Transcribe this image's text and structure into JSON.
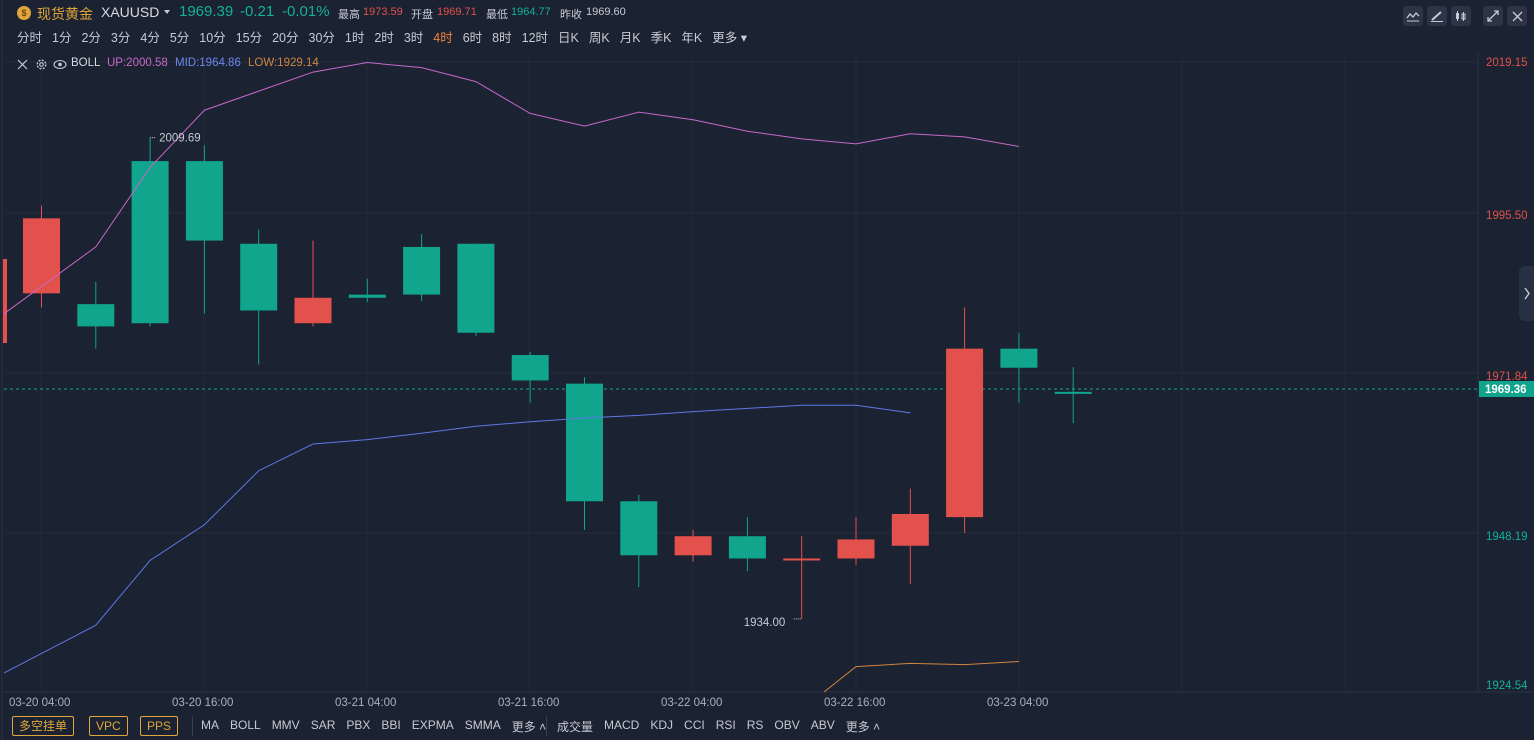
{
  "header": {
    "instrument_name": "现货黄金",
    "symbol": "XAUUSD",
    "coin_icon": "gold-coin-icon",
    "last_price": "1969.39",
    "change": "-0.21",
    "change_pct": "-0.01%",
    "high_label": "最高",
    "high": "1973.59",
    "open_label": "开盘",
    "open": "1969.71",
    "low_label": "最低",
    "low": "1964.77",
    "prev_close_label": "昨收",
    "prev_close": "1969.60",
    "toolbar_icons": [
      "line-chart-icon",
      "draw-pen-icon",
      "candle-type-icon",
      "fullscreen-icon"
    ]
  },
  "periods": [
    "分时",
    "1分",
    "2分",
    "3分",
    "4分",
    "5分",
    "10分",
    "15分",
    "20分",
    "30分",
    "1时",
    "2时",
    "3时",
    "4时",
    "6时",
    "8时",
    "12时",
    "日K",
    "周K",
    "月K",
    "季K",
    "年K",
    "更多"
  ],
  "active_period": "4时",
  "indicator": {
    "name": "BOLL",
    "up_text": "UP:2000.58",
    "mid_text": "MID:1964.86",
    "low_text": "LOW:1929.14",
    "up_color": "#c868c8",
    "mid_color": "#5f78e8",
    "low_color": "#d0853f"
  },
  "annotations": {
    "high_marker": "2009.69",
    "low_marker": "1934.00"
  },
  "price_axis": {
    "labels": [
      "2019.15",
      "1995.50",
      "1971.84",
      "1948.19",
      "1924.54"
    ],
    "current_price_tag": "1969.36"
  },
  "time_axis": [
    "03-20 04:00",
    "03-20 16:00",
    "03-21 04:00",
    "03-21 16:00",
    "03-22 04:00",
    "03-22 16:00",
    "03-23 04:00"
  ],
  "bottom": {
    "buttons": [
      "多空挂单",
      "VPC",
      "PPS"
    ],
    "main_indicators": [
      "MA",
      "BOLL",
      "MMV",
      "SAR",
      "PBX",
      "BBI",
      "EXPMA",
      "SMMA",
      "更多"
    ],
    "sub_indicators": [
      "成交量",
      "MACD",
      "KDJ",
      "CCI",
      "RSI",
      "RS",
      "OBV",
      "ABV",
      "更多"
    ]
  },
  "colors": {
    "up": "#e2514c",
    "down": "#10a58c",
    "accent": "#f0833a",
    "background": "#1b2231"
  },
  "chart_data": {
    "type": "candlestick",
    "price_range": [
      1922.5,
      2023.0
    ],
    "candles": [
      {
        "o": 1985.2,
        "c": 1997.0,
        "h": 1999.0,
        "l": 1983.0
      },
      {
        "o": 1983.5,
        "c": 1980.0,
        "h": 1987.0,
        "l": 1976.5
      },
      {
        "o": 2006.0,
        "c": 1980.5,
        "h": 2009.69,
        "l": 1980.0
      },
      {
        "o": 2006.0,
        "c": 1993.5,
        "h": 2008.5,
        "l": 1982.0
      },
      {
        "o": 1993.0,
        "c": 1982.5,
        "h": 1995.2,
        "l": 1974.0
      },
      {
        "o": 1980.5,
        "c": 1984.5,
        "h": 1993.5,
        "l": 1980.0
      },
      {
        "o": 1985.0,
        "c": 1984.5,
        "h": 1987.5,
        "l": 1983.8
      },
      {
        "o": 1992.5,
        "c": 1985.0,
        "h": 1994.5,
        "l": 1984.0
      },
      {
        "o": 1993.0,
        "c": 1979.0,
        "h": 1993.0,
        "l": 1978.5
      },
      {
        "o": 1975.5,
        "c": 1971.5,
        "h": 1976.0,
        "l": 1968.0
      },
      {
        "o": 1971.0,
        "c": 1952.5,
        "h": 1972.0,
        "l": 1948.0
      },
      {
        "o": 1952.5,
        "c": 1944.0,
        "h": 1953.5,
        "l": 1939.0
      },
      {
        "o": 1944.0,
        "c": 1947.0,
        "h": 1948.0,
        "l": 1943.0
      },
      {
        "o": 1947.0,
        "c": 1943.5,
        "h": 1950.0,
        "l": 1941.5
      },
      {
        "o": 1943.3,
        "c": 1943.5,
        "h": 1947.0,
        "l": 1934.0
      },
      {
        "o": 1943.5,
        "c": 1946.5,
        "h": 1950.0,
        "l": 1942.5
      },
      {
        "o": 1945.5,
        "c": 1950.5,
        "h": 1954.5,
        "l": 1939.5
      },
      {
        "o": 1950.0,
        "c": 1976.5,
        "h": 1983.0,
        "l": 1947.5
      },
      {
        "o": 1976.5,
        "c": 1973.5,
        "h": 1979.0,
        "l": 1968.0
      },
      {
        "o": 1969.71,
        "c": 1969.39,
        "h": 1973.59,
        "l": 1964.77
      }
    ],
    "boll_up": [
      1982.0,
      1992.5,
      2005.0,
      2014.0,
      2017.0,
      2020.0,
      2021.5,
      2020.7,
      2018.5,
      2013.5,
      2011.5,
      2013.7,
      2012.5,
      2010.7,
      2009.5,
      2008.7,
      2010.3,
      2009.8,
      2008.3
    ],
    "boll_mid": [
      1925.5,
      1933.0,
      1943.2,
      1948.8,
      1957.3,
      1961.5,
      1962.2,
      1963.2,
      1964.3,
      1965.0,
      1965.6,
      1966.0,
      1966.6,
      1967.1,
      1967.6,
      1967.6,
      1966.4
    ],
    "boll_low": [
      1922.5,
      1926.5,
      1927.0,
      1926.8,
      1927.3
    ],
    "xlabel": "",
    "ylabel": ""
  }
}
